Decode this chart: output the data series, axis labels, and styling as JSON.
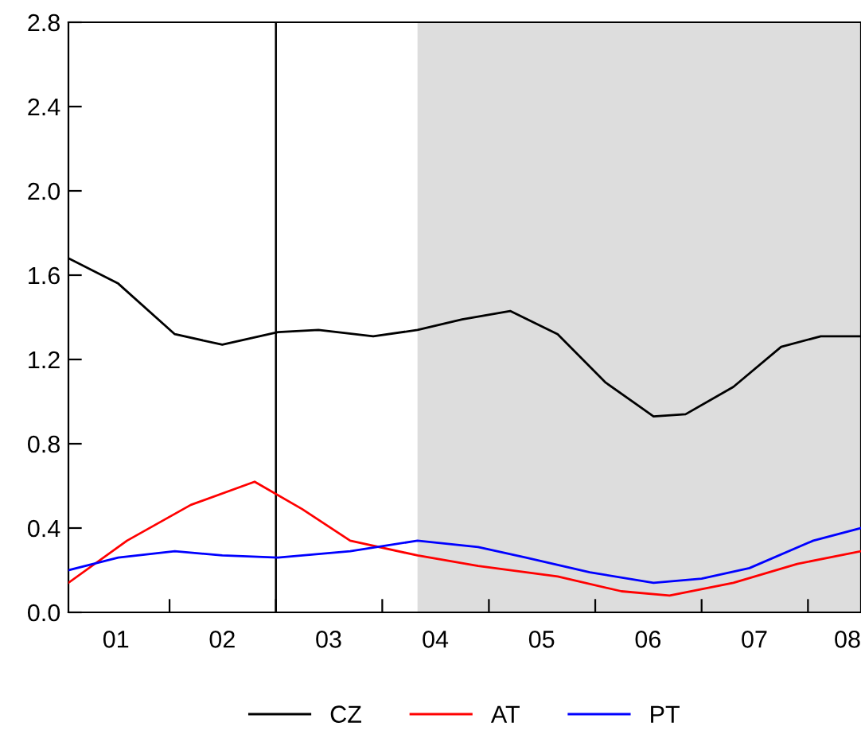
{
  "chart_data": {
    "type": "line",
    "xlim": [
      "2001-01-19",
      "2008-07-01"
    ],
    "xticks": [
      {
        "value": "2001-07-01",
        "label": "01"
      },
      {
        "value": "2002-07-01",
        "label": "02"
      },
      {
        "value": "2003-07-01",
        "label": "03"
      },
      {
        "value": "2004-07-01",
        "label": "04"
      },
      {
        "value": "2005-07-01",
        "label": "05"
      },
      {
        "value": "2006-07-01",
        "label": "06"
      },
      {
        "value": "2007-07-01",
        "label": "07"
      },
      {
        "value": "2008-07-01",
        "label": "08"
      },
      {
        "value": "2002-01-01",
        "label": null
      },
      {
        "value": "2003-01-01",
        "label": null
      },
      {
        "value": "2004-01-01",
        "label": null
      },
      {
        "value": "2005-01-01",
        "label": null
      },
      {
        "value": "2006-01-01",
        "label": null
      },
      {
        "value": "2007-01-01",
        "label": null
      },
      {
        "value": "2008-01-01",
        "label": null
      }
    ],
    "ylim": [
      0,
      2.8
    ],
    "yticks": [
      {
        "value": 0,
        "label": "0.0"
      },
      0.4,
      0.8,
      1.2,
      1.6,
      {
        "value": 2,
        "label": "2.0"
      },
      2.4,
      2.8
    ],
    "grid": false,
    "legend": "bottom",
    "line_style": "solid",
    "marker": "none",
    "ref_lines": [
      {
        "axis": "x",
        "value": "2003-01-01",
        "color": "#000000"
      }
    ],
    "bands": [
      {
        "axis": "x",
        "from": "2004-05-01",
        "to": "2008-07-01",
        "color": "#dddddd"
      }
    ],
    "series": [
      {
        "name": "CZ",
        "color": "#000000",
        "x": [
          "2001-01-19",
          "2001-07-09",
          "2002-01-19",
          "2002-07-01",
          "2003-01-08",
          "2003-05-27",
          "2003-12-01",
          "2004-05-01",
          "2004-10-01",
          "2005-03-15",
          "2005-08-25",
          "2006-02-06",
          "2006-07-20",
          "2006-11-07",
          "2007-04-20",
          "2007-10-01",
          "2008-02-14",
          "2008-07-01"
        ],
        "values": [
          1.68,
          1.56,
          1.32,
          1.27,
          1.33,
          1.34,
          1.31,
          1.34,
          1.39,
          1.43,
          1.32,
          1.09,
          0.93,
          0.94,
          1.07,
          1.26,
          1.31,
          1.31
        ]
      },
      {
        "name": "AT",
        "color": "#ff0000",
        "x": [
          "2001-01-19",
          "2001-08-08",
          "2002-03-15",
          "2002-10-20",
          "2003-04-01",
          "2003-09-13",
          "2004-05-01",
          "2004-11-25",
          "2005-08-25",
          "2006-04-01",
          "2006-09-13",
          "2007-04-20",
          "2007-11-25",
          "2008-07-01"
        ],
        "values": [
          0.14,
          0.34,
          0.51,
          0.62,
          0.49,
          0.34,
          0.27,
          0.22,
          0.17,
          0.1,
          0.08,
          0.14,
          0.23,
          0.29
        ]
      },
      {
        "name": "PT",
        "color": "#0000ff",
        "x": [
          "2001-01-19",
          "2001-07-09",
          "2002-01-19",
          "2002-07-01",
          "2003-01-08",
          "2003-09-13",
          "2004-05-01",
          "2004-11-25",
          "2005-05-08",
          "2005-12-13",
          "2006-07-20",
          "2007-01-01",
          "2007-06-14",
          "2008-01-19",
          "2008-07-01"
        ],
        "values": [
          0.2,
          0.26,
          0.29,
          0.27,
          0.26,
          0.29,
          0.34,
          0.31,
          0.26,
          0.19,
          0.14,
          0.16,
          0.21,
          0.34,
          0.4
        ]
      }
    ]
  }
}
